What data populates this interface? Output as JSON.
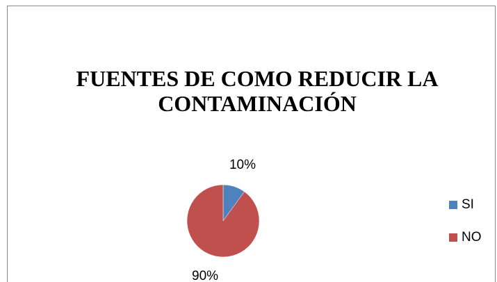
{
  "chart_data": {
    "type": "pie",
    "title": [
      "FUENTES DE COMO REDUCIR LA",
      "CONTAMINACIÓN"
    ],
    "categories": [
      "SI",
      "NO"
    ],
    "values": [
      10,
      90
    ],
    "value_labels": [
      "10%",
      "90%"
    ],
    "colors": [
      "#4f81bd",
      "#c0504d"
    ],
    "legend": "right"
  }
}
